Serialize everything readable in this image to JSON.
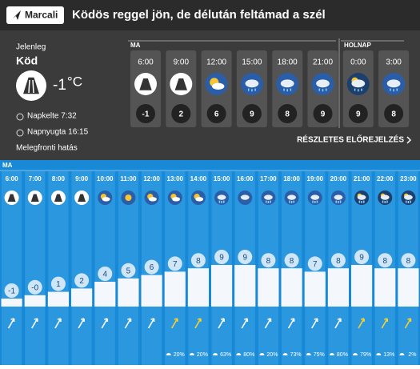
{
  "header": {
    "location": "Marcali",
    "title": "Ködös reggel jön, de délután feltámad a szél"
  },
  "current": {
    "label": "Jelenleg",
    "condition": "Köd",
    "temp": -1,
    "unit": "°C",
    "sunrise": "Napkelte 7:32",
    "sunset": "Napnyugta 16:15",
    "note": "Melegfronti hatás"
  },
  "forecast": {
    "today": "MA",
    "tomorrow": "HOLNAP",
    "times": [
      "6:00",
      "9:00",
      "12:00",
      "15:00",
      "18:00",
      "21:00",
      "0:00",
      "3:00"
    ],
    "temps": [
      -1,
      2,
      6,
      9,
      8,
      9,
      9,
      8
    ],
    "link": "RÉSZLETES ELŐREJELZÉS"
  },
  "hourly": {
    "day": "MA",
    "hours": [
      "6:00",
      "7:00",
      "8:00",
      "9:00",
      "10:00",
      "11:00",
      "12:00",
      "13:00",
      "14:00",
      "15:00",
      "16:00",
      "17:00",
      "18:00",
      "19:00",
      "20:00",
      "21:00",
      "22:00",
      "23:00"
    ],
    "temps": [
      -1,
      0,
      1,
      2,
      4,
      5,
      6,
      7,
      8,
      9,
      9,
      8,
      8,
      7,
      8,
      9,
      8,
      8
    ],
    "temp_labels": [
      "-1",
      "-0",
      "1",
      "2",
      "4",
      "5",
      "6",
      "7",
      "8",
      "9",
      "9",
      "8",
      "8",
      "7",
      "8",
      "9",
      "8",
      "8"
    ],
    "precip": [
      null,
      null,
      null,
      null,
      null,
      null,
      null,
      "20%",
      "20%",
      "63%",
      "80%",
      "20%",
      "73%",
      "75%",
      "80%",
      "79%",
      "13%",
      "2%"
    ],
    "wind_colors": [
      "#ffffff",
      "#ffffff",
      "#ffffff",
      "#ffffff",
      "#ffffff",
      "#ffffff",
      "#ffffff",
      "#f5d130",
      "#f5d130",
      "#ffffff",
      "#ffffff",
      "#ffffff",
      "#ffffff",
      "#ffffff",
      "#ffffff",
      "#f5d130",
      "#f5d130",
      "#f5d130"
    ]
  }
}
